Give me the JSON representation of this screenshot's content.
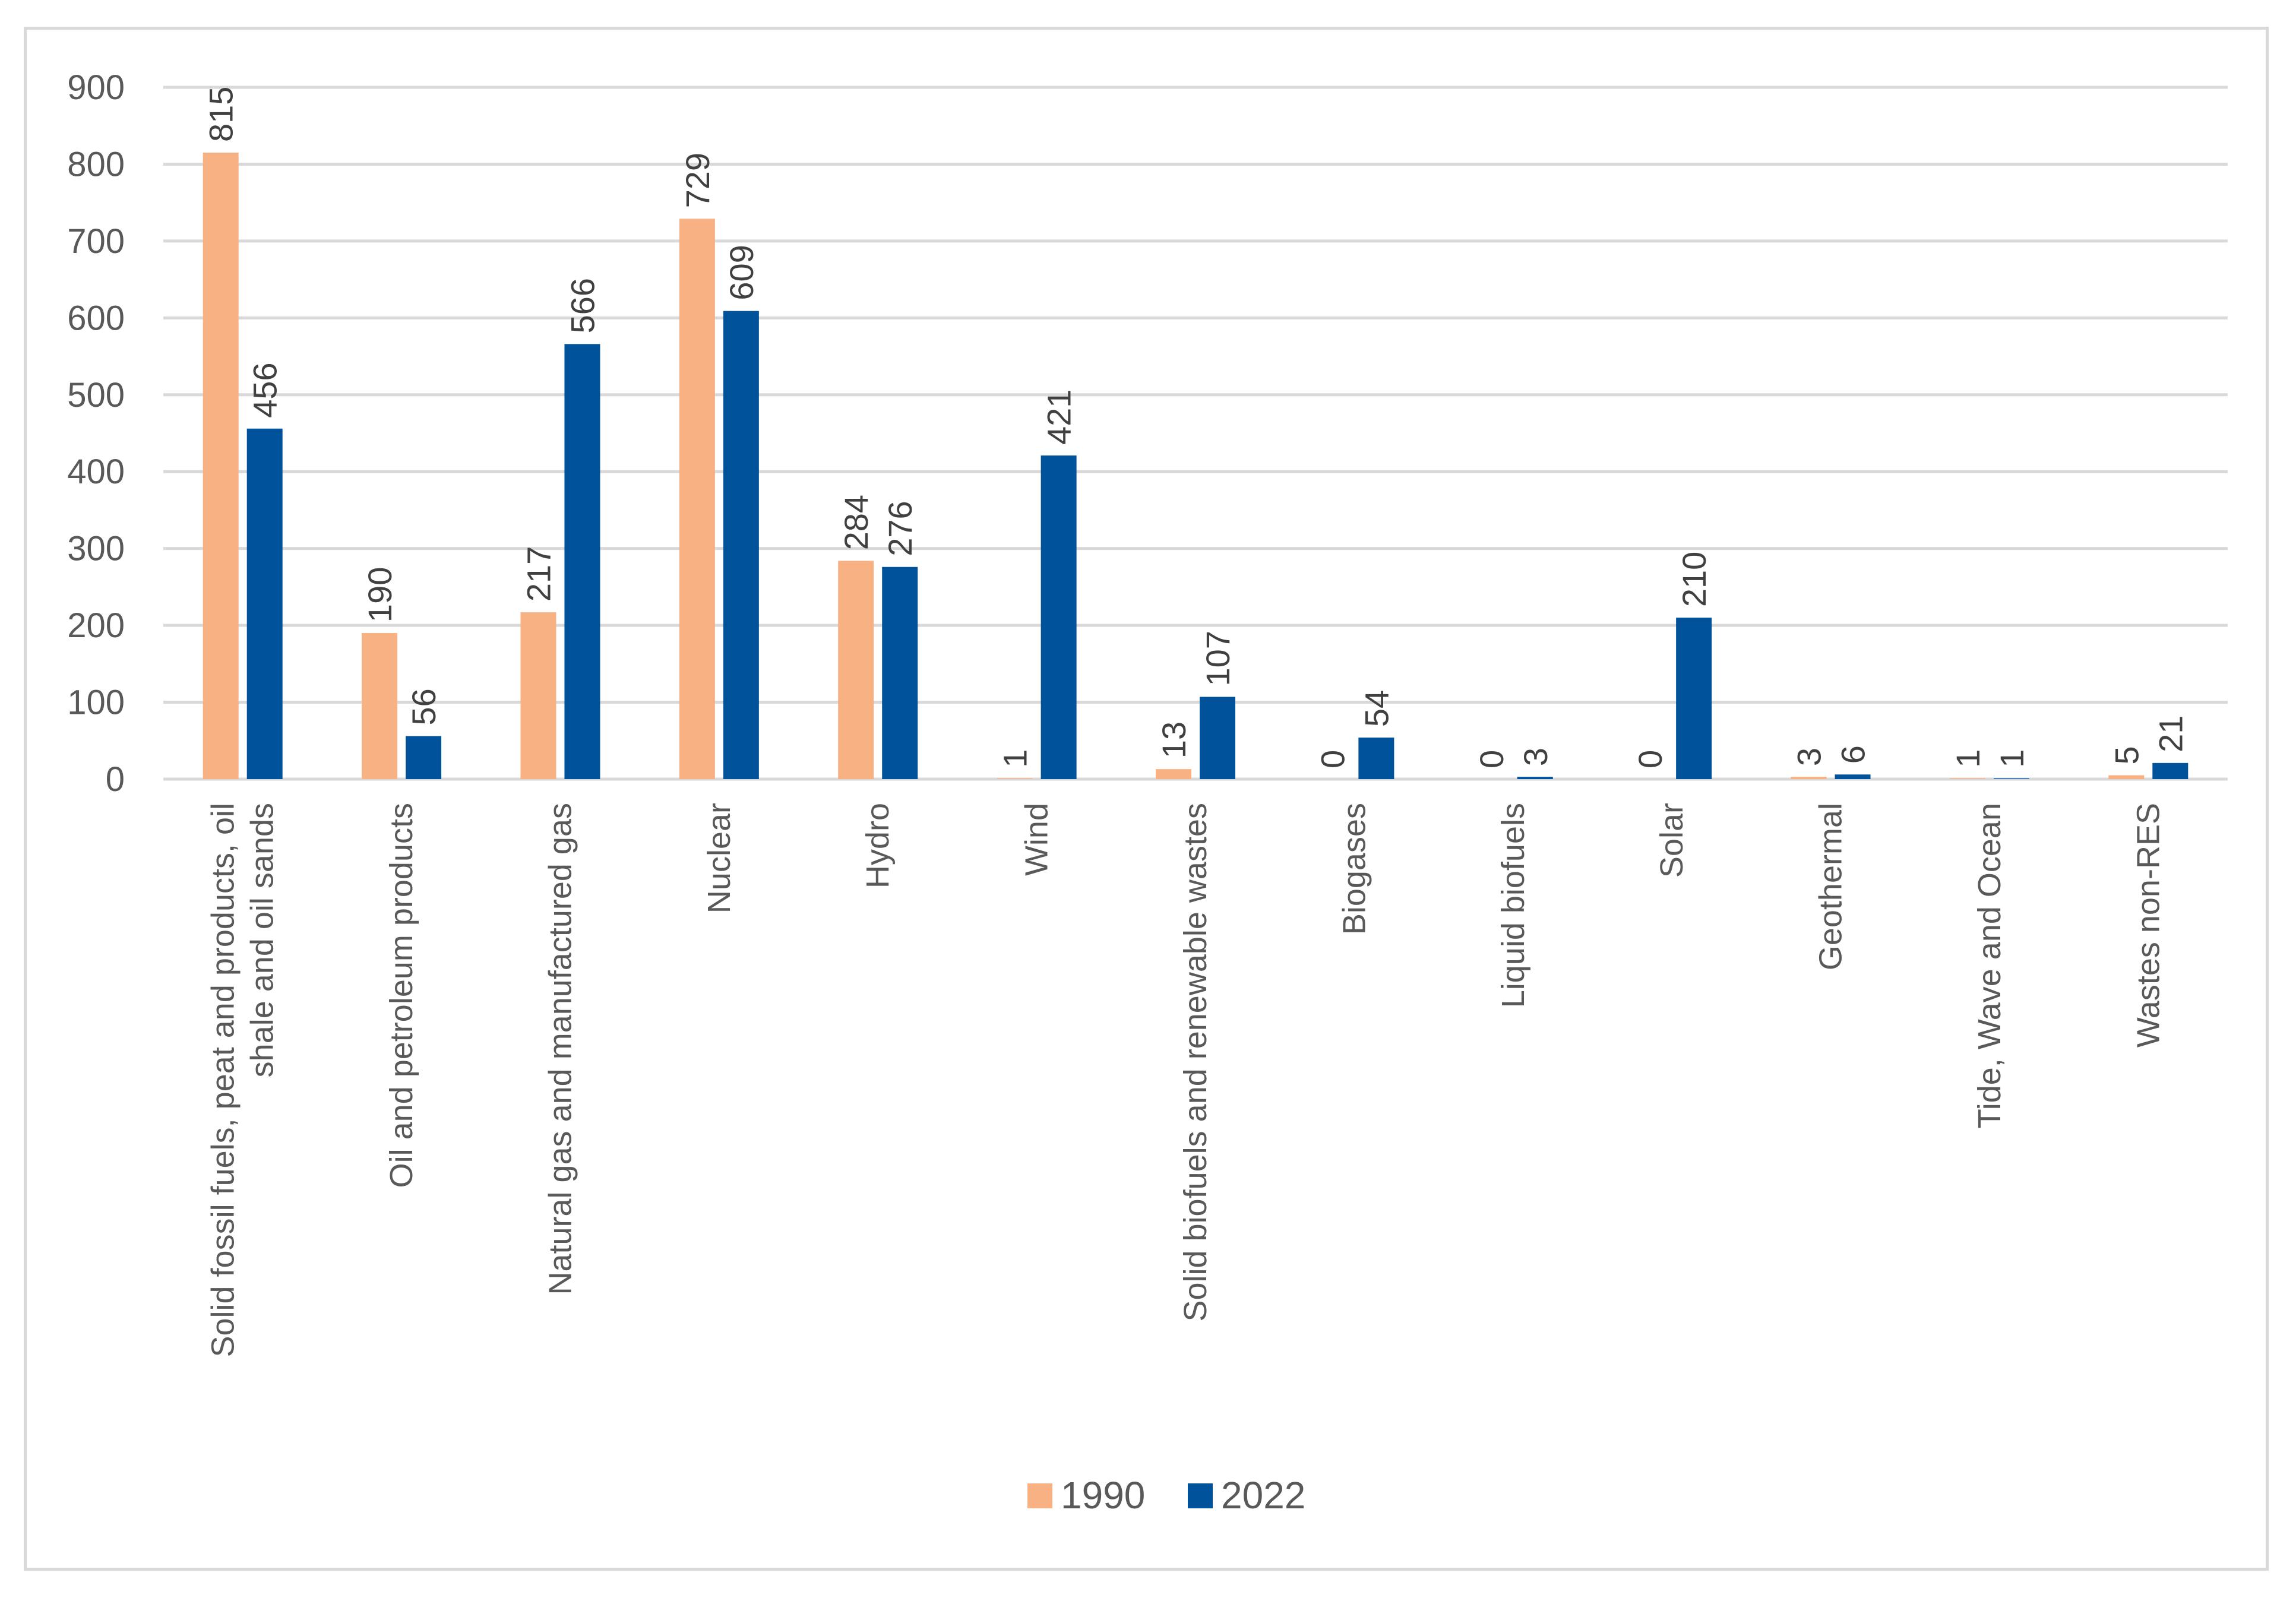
{
  "chart_data": {
    "type": "bar",
    "title": "",
    "xlabel": "",
    "ylabel": "",
    "ylim": [
      0,
      900
    ],
    "yticks": [
      0,
      100,
      200,
      300,
      400,
      500,
      600,
      700,
      800,
      900
    ],
    "grid": true,
    "legend_position": "bottom",
    "categories": [
      [
        "Solid fossil fuels, peat and products, oil",
        "shale and oil sands"
      ],
      [
        "Oil and petroleum products"
      ],
      [
        "Natural gas and manufactured gas"
      ],
      [
        "Nuclear"
      ],
      [
        "Hydro"
      ],
      [
        "Wind"
      ],
      [
        "Solid biofuels and renewable wastes"
      ],
      [
        "Biogases"
      ],
      [
        "Liquid biofuels"
      ],
      [
        "Solar"
      ],
      [
        "Geothermal"
      ],
      [
        "Tide, Wave and Ocean"
      ],
      [
        "Wastes non-RES"
      ]
    ],
    "series": [
      {
        "name": "1990",
        "color": "#F8B183",
        "values": [
          815,
          190,
          217,
          729,
          284,
          1,
          13,
          0,
          0,
          0,
          3,
          1,
          5
        ]
      },
      {
        "name": "2022",
        "color": "#00529B",
        "values": [
          456,
          56,
          566,
          609,
          276,
          421,
          107,
          54,
          3,
          210,
          6,
          1,
          21
        ]
      }
    ]
  },
  "colors": {
    "grid": "#d9d9d9",
    "axis": "#d9d9d9",
    "text": "#595959",
    "frame": "#d9d9d9"
  }
}
